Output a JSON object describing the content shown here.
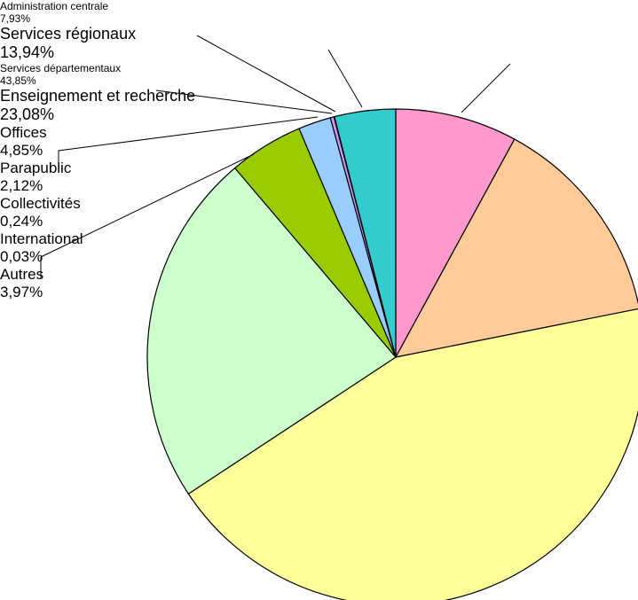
{
  "chart_data": {
    "type": "pie",
    "categories": [
      "Administration\ncentrale",
      "Services\nrégionaux",
      "Services\ndépartementaux",
      "Enseignement\net recherche",
      "Offices",
      "Parapublic",
      "Collectivités",
      "International",
      "Autres"
    ],
    "values": [
      7.93,
      13.94,
      43.85,
      23.08,
      4.85,
      2.12,
      0.24,
      0.03,
      3.97
    ],
    "value_labels": [
      "7,93%",
      "13,94%",
      "43,85%",
      "23,08%",
      "4,85%",
      "2,12%",
      "0,24%",
      "0,03%",
      "3,97%"
    ],
    "colors": [
      "#ff99cc",
      "#ffcc99",
      "#ffff99",
      "#ccffcc",
      "#99cc00",
      "#99ccff",
      "#cc99ff",
      "#9999ff",
      "#33cccc"
    ]
  }
}
